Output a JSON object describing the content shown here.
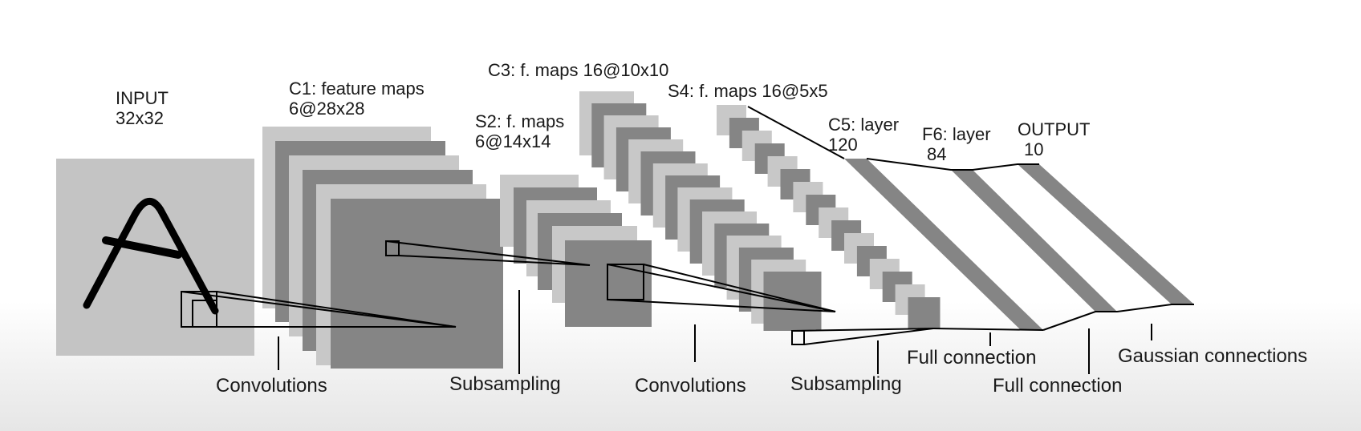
{
  "layers": {
    "input": {
      "name": "INPUT",
      "shape": "32x32"
    },
    "c1": {
      "name": "C1: feature maps",
      "shape": "6@28x28"
    },
    "s2": {
      "name": "S2: f. maps",
      "shape": "6@14x14"
    },
    "c3": {
      "name": "C3: f. maps 16@10x10"
    },
    "s4": {
      "name": "S4: f. maps 16@5x5"
    },
    "c5": {
      "name": "C5: layer",
      "shape": "120"
    },
    "f6": {
      "name": "F6: layer",
      "shape": "84"
    },
    "output": {
      "name": "OUTPUT",
      "shape": "10"
    }
  },
  "operations": {
    "convolutions_1": "Convolutions",
    "subsampling_1": "Subsampling",
    "convolutions_2": "Convolutions",
    "subsampling_2": "Subsampling",
    "full_connection_1": "Full connection",
    "full_connection_2": "Full connection",
    "gaussian": "Gaussian connections"
  },
  "input_glyph": "A",
  "colors": {
    "light_map": "#c8c8c8",
    "dark_map": "#858585",
    "input_bg": "#c4c4c4",
    "line": "#000000",
    "text": "#1a1a1a"
  }
}
